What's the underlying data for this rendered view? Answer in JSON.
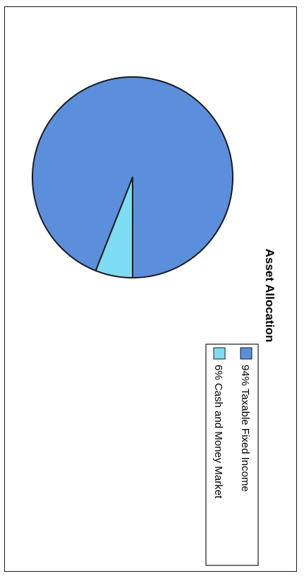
{
  "chart_data": {
    "type": "pie",
    "title": "Asset Allocation",
    "slices": [
      {
        "label": "94% Taxable Fixed Income",
        "value": 94,
        "color": "#5b8fdc"
      },
      {
        "label": "6% Cash and Money Market",
        "value": 6,
        "color": "#7ddcf2"
      }
    ],
    "legend_position": "bottom",
    "orientation": "rotated 90° clockwise"
  }
}
